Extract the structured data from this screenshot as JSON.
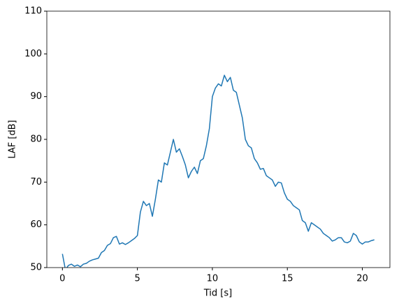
{
  "chart_data": {
    "type": "line",
    "xlabel": "Tid [s]",
    "ylabel": "LAF [dB]",
    "x": [
      0,
      0.2,
      0.4,
      0.6,
      0.8,
      1,
      1.2,
      1.4,
      1.6,
      1.8,
      2,
      2.2,
      2.4,
      2.6,
      2.8,
      3,
      3.2,
      3.4,
      3.6,
      3.8,
      4,
      4.2,
      4.4,
      4.6,
      4.8,
      5,
      5.2,
      5.4,
      5.6,
      5.8,
      6,
      6.2,
      6.4,
      6.6,
      6.8,
      7,
      7.2,
      7.4,
      7.6,
      7.8,
      8,
      8.2,
      8.4,
      8.6,
      8.8,
      9,
      9.2,
      9.4,
      9.6,
      9.8,
      10,
      10.2,
      10.4,
      10.6,
      10.8,
      11,
      11.2,
      11.4,
      11.6,
      11.8,
      12,
      12.2,
      12.4,
      12.6,
      12.8,
      13,
      13.2,
      13.4,
      13.6,
      13.8,
      14,
      14.2,
      14.4,
      14.6,
      14.8,
      15,
      15.2,
      15.4,
      15.6,
      15.8,
      16,
      16.2,
      16.4,
      16.6,
      16.8,
      17,
      17.2,
      17.4,
      17.6,
      17.8,
      18,
      18.2,
      18.4,
      18.6,
      18.8,
      19,
      19.2,
      19.4,
      19.6,
      19.8,
      20,
      20.2,
      20.4,
      20.6,
      20.8
    ],
    "series": [
      {
        "color": "#1f77b4",
        "values": [
          53.2,
          49.5,
          50.5,
          50.8,
          50.3,
          50.6,
          50.2,
          50.8,
          51.0,
          51.5,
          51.8,
          52.0,
          52.2,
          53.5,
          54.0,
          55.2,
          55.6,
          57.0,
          57.3,
          55.5,
          55.8,
          55.4,
          55.8,
          56.3,
          56.8,
          57.5,
          63.0,
          65.5,
          64.5,
          65.0,
          62.0,
          66.0,
          70.5,
          70.0,
          74.5,
          74.0,
          77.0,
          80.0,
          77.0,
          77.8,
          76.0,
          74.0,
          71.0,
          72.5,
          73.5,
          72.0,
          75.0,
          75.5,
          78.5,
          82.5,
          90.0,
          92.0,
          93.0,
          92.5,
          95.0,
          93.5,
          94.5,
          91.5,
          91.0,
          88.0,
          85.0,
          80.0,
          78.5,
          78.0,
          75.5,
          74.5,
          73.0,
          73.2,
          71.5,
          71.0,
          70.5,
          69.0,
          70.0,
          69.8,
          67.5,
          66.0,
          65.5,
          64.5,
          64.0,
          63.5,
          61.0,
          60.5,
          58.5,
          60.5,
          60.0,
          59.5,
          59.0,
          58.0,
          57.5,
          57.0,
          56.2,
          56.5,
          57.0,
          57.0,
          56.0,
          55.8,
          56.2,
          58.0,
          57.5,
          56.0,
          55.5,
          56.0,
          56.0,
          56.3,
          56.5
        ]
      }
    ],
    "xlim": [
      -1.04,
      21.84
    ],
    "xticks": [
      0,
      5,
      10,
      15,
      20
    ],
    "ylim": [
      50,
      110
    ],
    "yticks": [
      50,
      60,
      70,
      80,
      90,
      100,
      110
    ]
  }
}
